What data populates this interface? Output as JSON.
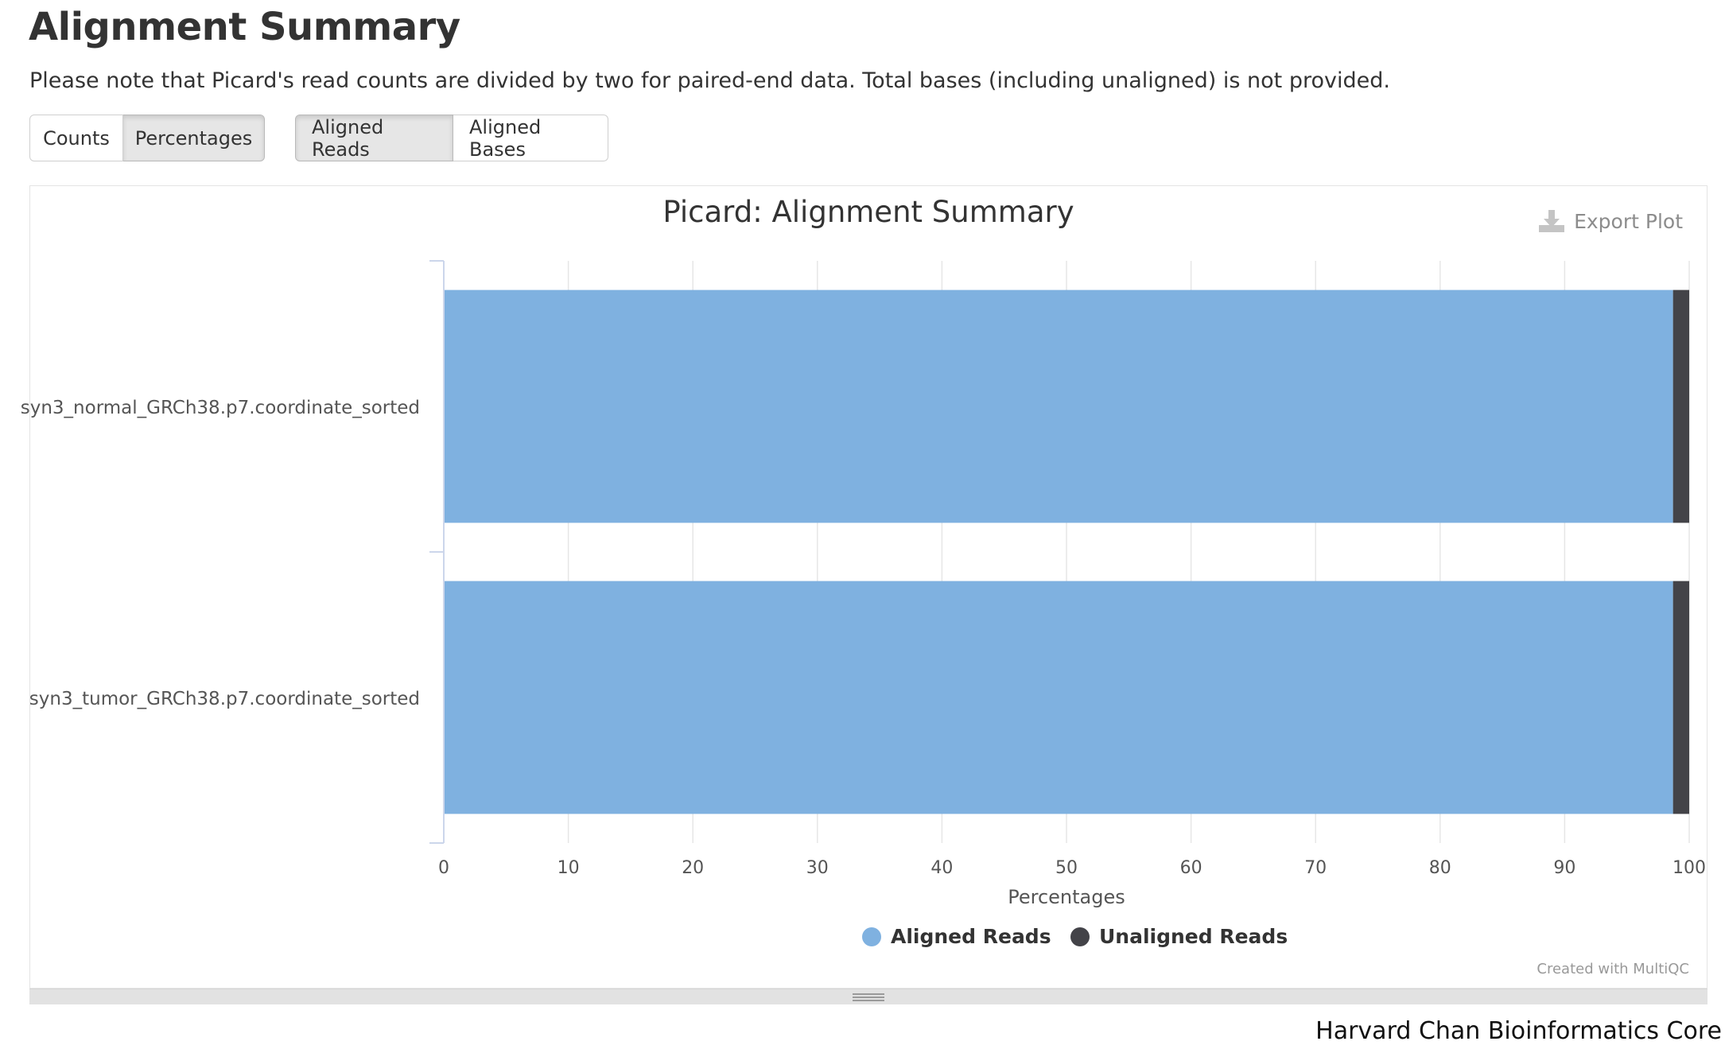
{
  "header": {
    "title": "Alignment Summary",
    "note": "Please note that Picard's read counts are divided by two for paired-end data. Total bases (including unaligned) is not provided."
  },
  "toolbar": {
    "mode_buttons": [
      {
        "label": "Counts",
        "active": false
      },
      {
        "label": "Percentages",
        "active": true
      }
    ],
    "dataset_buttons": [
      {
        "label": "Aligned Reads",
        "active": true
      },
      {
        "label": "Aligned Bases",
        "active": false
      }
    ]
  },
  "plot": {
    "export_label": "Export Plot",
    "credit": "Created with MultiQC"
  },
  "footer": {
    "credit": "Harvard Chan Bioinformatics Core"
  },
  "chart_data": {
    "type": "bar",
    "orientation": "horizontal",
    "stacked": true,
    "title": "Picard: Alignment Summary",
    "xlabel": "Percentages",
    "ylabel": "",
    "xlim": [
      0,
      100
    ],
    "xticks": [
      0,
      10,
      20,
      30,
      40,
      50,
      60,
      70,
      80,
      90,
      100
    ],
    "grid": true,
    "legend_position": "bottom-center",
    "categories": [
      "syn3_normal_GRCh38.p7.coordinate_sorted",
      "syn3_tumor_GRCh38.p7.coordinate_sorted"
    ],
    "series": [
      {
        "name": "Aligned Reads",
        "color": "#7fb1e0",
        "values": [
          98.7,
          98.7
        ]
      },
      {
        "name": "Unaligned Reads",
        "color": "#434348",
        "values": [
          1.3,
          1.3
        ]
      }
    ]
  }
}
